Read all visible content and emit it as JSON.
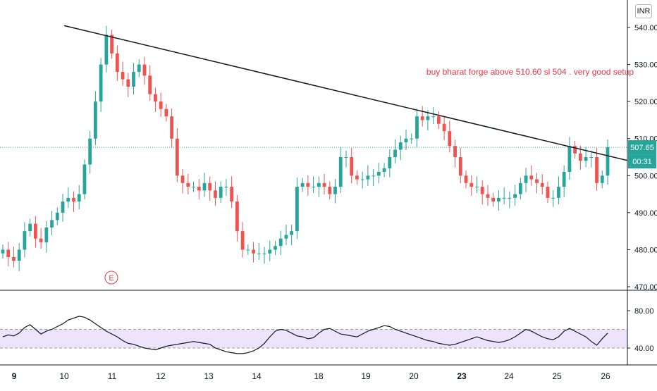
{
  "currency": "INR",
  "annotation_text": "buy bharat forge above 510.60 sl 504 . very good setup",
  "price_label": "507.65",
  "countdown_label": "00:31",
  "event_marker": "E",
  "colors": {
    "up": "#26a69a",
    "down": "#ef5350",
    "trendline": "#131722",
    "annotation": "#f23645",
    "rsi_line": "#131722",
    "rsi_band": "#ede3fb",
    "price_line": "#26a69a"
  },
  "chart_data": [
    {
      "type": "line",
      "chart_kind": "candlestick",
      "price_axis": {
        "ticks": [
          470,
          480,
          490,
          500,
          510,
          520,
          530,
          540
        ],
        "ylim": [
          470,
          544
        ]
      },
      "time_axis": {
        "ticks": [
          "9",
          "10",
          "11",
          "12",
          "13",
          "14",
          "18",
          "19",
          "20",
          "23",
          "24",
          "25",
          "26"
        ]
      },
      "trendline": {
        "start": [
          "10",
          540.5
        ],
        "end": [
          "26",
          506.0
        ]
      },
      "last_price": 507.65,
      "series": [
        {
          "values": [
            480,
            478,
            477,
            480,
            485,
            487,
            483,
            482,
            486,
            488,
            490,
            493,
            494,
            493,
            495,
            503,
            510,
            520,
            530,
            538,
            533,
            528,
            526,
            524,
            528,
            530,
            527,
            522,
            520,
            518,
            516,
            510,
            500,
            498,
            497,
            497,
            496,
            498,
            496,
            494,
            497,
            497,
            493,
            485,
            480,
            480,
            479,
            479,
            479,
            480,
            481,
            483,
            484,
            485,
            497,
            498,
            497,
            497,
            498,
            497,
            495,
            497,
            505,
            505,
            500,
            499,
            499,
            500,
            500,
            501,
            502,
            505,
            507,
            509,
            510,
            510,
            516,
            515,
            516,
            516,
            514,
            512,
            508,
            505,
            500,
            498,
            497,
            497,
            495,
            494,
            493,
            494,
            494,
            494,
            495,
            498,
            500,
            499,
            498,
            497,
            494,
            494,
            497,
            501,
            508,
            506,
            504,
            505,
            505,
            498,
            500,
            507.65
          ]
        }
      ]
    },
    {
      "type": "line",
      "chart_kind": "rsi",
      "ticks": [
        40,
        80
      ],
      "band": [
        40,
        60
      ],
      "series": [
        {
          "values": [
            52,
            54,
            53,
            56,
            62,
            65,
            60,
            55,
            58,
            60,
            63,
            66,
            70,
            72,
            74,
            73,
            70,
            66,
            62,
            58,
            55,
            52,
            48,
            45,
            44,
            42,
            40,
            39,
            38,
            40,
            42,
            43,
            44,
            45,
            46,
            47,
            46,
            45,
            44,
            40,
            38,
            36,
            35,
            34,
            34,
            35,
            37,
            40,
            45,
            52,
            58,
            60,
            59,
            56,
            53,
            52,
            50,
            51,
            56,
            60,
            61,
            58,
            55,
            54,
            53,
            52,
            55,
            58,
            60,
            62,
            64,
            63,
            60,
            58,
            56,
            54,
            52,
            50,
            48,
            47,
            45,
            44,
            43,
            44,
            46,
            48,
            50,
            52,
            50,
            48,
            47,
            46,
            47,
            49,
            52,
            56,
            60,
            58,
            55,
            52,
            50,
            49,
            52,
            58,
            61,
            58,
            55,
            52,
            47,
            43,
            50,
            56
          ]
        }
      ]
    }
  ]
}
